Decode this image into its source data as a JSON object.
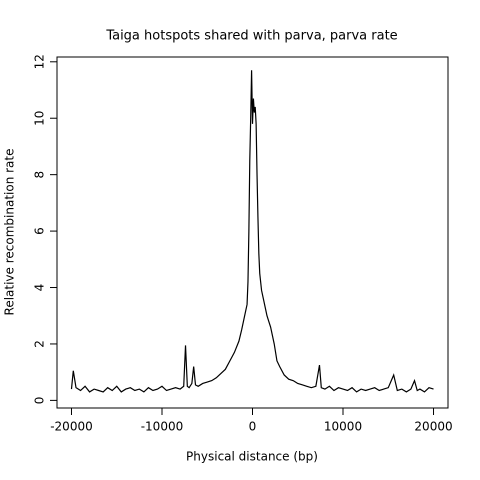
{
  "chart_data": {
    "type": "line",
    "title": "Taiga hotspots shared with parva, parva rate",
    "xlabel": "Physical distance (bp)",
    "ylabel": "Relative recombination rate",
    "x": [
      -20000,
      -19800,
      -19500,
      -19000,
      -18500,
      -18000,
      -17500,
      -17000,
      -16500,
      -16000,
      -15500,
      -15000,
      -14500,
      -14000,
      -13500,
      -13000,
      -12500,
      -12000,
      -11500,
      -11000,
      -10500,
      -10000,
      -9500,
      -9000,
      -8500,
      -8000,
      -7600,
      -7400,
      -7200,
      -7000,
      -6700,
      -6500,
      -6300,
      -6000,
      -5500,
      -5000,
      -4500,
      -4000,
      -3500,
      -3000,
      -2500,
      -2000,
      -1500,
      -1200,
      -1000,
      -800,
      -600,
      -500,
      -400,
      -300,
      -200,
      -100,
      0,
      100,
      200,
      300,
      400,
      500,
      600,
      700,
      800,
      1000,
      1200,
      1400,
      1600,
      1800,
      2000,
      2200,
      2400,
      2700,
      3000,
      3500,
      4000,
      4500,
      5000,
      5500,
      6000,
      6500,
      7000,
      7400,
      7600,
      8000,
      8500,
      9000,
      9500,
      10000,
      10500,
      11000,
      11500,
      12000,
      12500,
      13000,
      13500,
      14000,
      14500,
      15000,
      15600,
      16000,
      16500,
      17000,
      17500,
      17900,
      18200,
      18500,
      19000,
      19500,
      20000
    ],
    "series": [
      {
        "name": "parva rate",
        "color": "#000000",
        "values": [
          0.4,
          1.05,
          0.45,
          0.35,
          0.5,
          0.3,
          0.4,
          0.35,
          0.3,
          0.45,
          0.35,
          0.5,
          0.3,
          0.4,
          0.45,
          0.35,
          0.4,
          0.3,
          0.45,
          0.35,
          0.4,
          0.5,
          0.35,
          0.4,
          0.45,
          0.4,
          0.5,
          1.95,
          0.5,
          0.45,
          0.6,
          1.2,
          0.55,
          0.5,
          0.6,
          0.65,
          0.7,
          0.8,
          0.95,
          1.1,
          1.4,
          1.7,
          2.1,
          2.5,
          2.8,
          3.1,
          3.4,
          4.2,
          6.0,
          8.5,
          10.0,
          11.7,
          9.8,
          10.7,
          10.2,
          10.4,
          9.8,
          8.0,
          6.5,
          5.2,
          4.5,
          3.9,
          3.6,
          3.3,
          3.0,
          2.8,
          2.6,
          2.3,
          2.0,
          1.4,
          1.2,
          0.9,
          0.75,
          0.7,
          0.6,
          0.55,
          0.5,
          0.45,
          0.5,
          1.25,
          0.45,
          0.4,
          0.5,
          0.35,
          0.45,
          0.4,
          0.35,
          0.45,
          0.3,
          0.4,
          0.35,
          0.4,
          0.45,
          0.35,
          0.4,
          0.45,
          0.9,
          0.35,
          0.4,
          0.3,
          0.4,
          0.7,
          0.35,
          0.4,
          0.3,
          0.45,
          0.4
        ]
      }
    ],
    "xlim": [
      -21600,
      21600
    ],
    "ylim": [
      -0.27,
      12.17
    ],
    "xticks": [
      -20000,
      -10000,
      0,
      10000,
      20000
    ],
    "yticks": [
      0,
      2,
      4,
      6,
      8,
      10,
      12
    ]
  }
}
